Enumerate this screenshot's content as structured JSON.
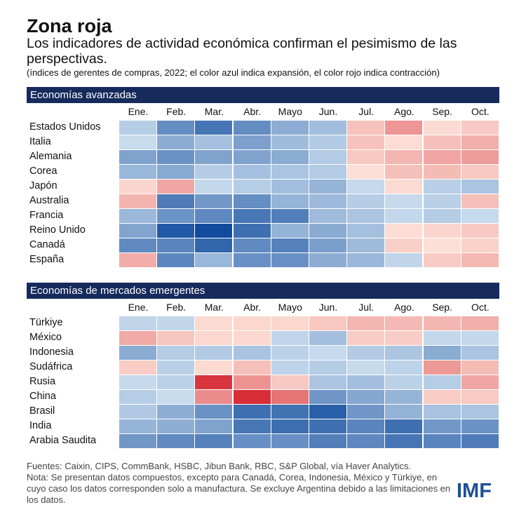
{
  "header": {
    "title": "Zona roja",
    "subtitle": "Los indicadores de actividad económica confirman el pesimismo de las perspectivas.",
    "note": "(índices de gerentes de compras, 2022; el color azul indica expansión, el color rojo indica contracción)"
  },
  "footer": {
    "sources": "Fuentes: Caixin, CIPS, CommBank, HSBC, Jibun Bank, RBC, S&P Global, vía Haver Analytics.",
    "note": "Nota: Se presentan datos compuestos, excepto para Canadá, Corea, Indonesia, México y Türkiye, en cuyo caso los datos corresponden solo a manufactura. Se excluye Argentina debido a las limitaciones en los datos.",
    "logo": "IMF"
  },
  "colors": {
    "header_bg": "#162a5c",
    "logo": "#1e4f96",
    "expansion_strong": "#0e4a9c",
    "expansion_light": "#c9dcee",
    "contraction_light": "#fde2d8",
    "contraction_strong": "#d62b36"
  },
  "chart_data": [
    {
      "type": "heatmap",
      "title": "Economías avanzadas",
      "x": [
        "Ene.",
        "Feb.",
        "Mar.",
        "Abr.",
        "Mayo",
        "Jun.",
        "Jul.",
        "Ago.",
        "Sep.",
        "Oct."
      ],
      "y": [
        "Estados Unidos",
        "Italia",
        "Alemania",
        "Corea",
        "Japón",
        "Australia",
        "Francia",
        "Reino Unido",
        "Canadá",
        "España"
      ],
      "values": [
        [
          51.1,
          55.9,
          57.7,
          56.0,
          53.6,
          52.3,
          47.7,
          44.6,
          49.5,
          48.2
        ],
        [
          50.1,
          53.6,
          52.1,
          54.5,
          52.4,
          51.3,
          47.7,
          49.6,
          47.6,
          46.4
        ],
        [
          54.3,
          55.6,
          54.3,
          54.3,
          53.7,
          51.3,
          48.1,
          46.9,
          45.7,
          45.1
        ],
        [
          52.8,
          53.8,
          51.2,
          52.1,
          51.8,
          51.3,
          49.8,
          47.6,
          47.3,
          48.2
        ],
        [
          49.1,
          45.8,
          50.3,
          51.1,
          52.3,
          53.0,
          50.2,
          49.4,
          51.0,
          51.8
        ],
        [
          46.7,
          57.2,
          55.1,
          55.9,
          53.0,
          52.6,
          51.1,
          50.2,
          50.9,
          47.6
        ],
        [
          52.7,
          55.5,
          56.3,
          57.6,
          57.0,
          52.5,
          51.7,
          50.4,
          51.2,
          50.2
        ],
        [
          54.2,
          59.9,
          60.9,
          58.2,
          53.1,
          53.7,
          52.1,
          49.6,
          49.1,
          48.2
        ],
        [
          56.2,
          56.6,
          58.9,
          56.2,
          56.8,
          54.6,
          52.5,
          48.7,
          49.8,
          48.8
        ],
        [
          46.2,
          56.5,
          52.8,
          55.7,
          55.7,
          53.6,
          52.7,
          50.5,
          48.4,
          47.0
        ]
      ]
    },
    {
      "type": "heatmap",
      "title": "Economías de mercados emergentes",
      "x": [
        "Ene.",
        "Feb.",
        "Mar.",
        "Abr.",
        "Mayo",
        "Jun.",
        "Jul.",
        "Ago.",
        "Sep.",
        "Oct."
      ],
      "y": [
        "Türkiye",
        "México",
        "Indonesia",
        "Sudáfrica",
        "Rusia",
        "China",
        "Brasil",
        "India",
        "Arabia Saudita"
      ],
      "values": [
        [
          50.5,
          50.4,
          49.4,
          49.2,
          49.2,
          48.1,
          46.9,
          47.1,
          46.9,
          46.4
        ],
        [
          46.1,
          48.0,
          49.2,
          49.3,
          50.6,
          52.2,
          48.5,
          48.5,
          50.3,
          50.3
        ],
        [
          53.7,
          51.2,
          51.3,
          51.9,
          50.8,
          50.2,
          51.3,
          51.7,
          53.7,
          51.8
        ],
        [
          48.5,
          50.9,
          49.4,
          47.6,
          50.7,
          51.2,
          50.1,
          50.7,
          44.8,
          47.3
        ],
        [
          50.2,
          50.8,
          37.7,
          44.4,
          48.2,
          51.7,
          52.2,
          50.8,
          51.1,
          45.8
        ],
        [
          51.1,
          50.1,
          43.9,
          37.2,
          42.2,
          55.3,
          54.0,
          53.0,
          48.5,
          48.3
        ],
        [
          51.4,
          53.5,
          55.6,
          58.2,
          58.0,
          59.4,
          55.3,
          53.2,
          51.9,
          51.8
        ],
        [
          53.0,
          53.5,
          54.3,
          57.6,
          58.3,
          58.2,
          56.6,
          58.2,
          55.1,
          55.5
        ],
        [
          55.2,
          56.2,
          56.8,
          55.7,
          55.7,
          57.0,
          56.3,
          57.7,
          56.6,
          57.2
        ]
      ]
    }
  ]
}
